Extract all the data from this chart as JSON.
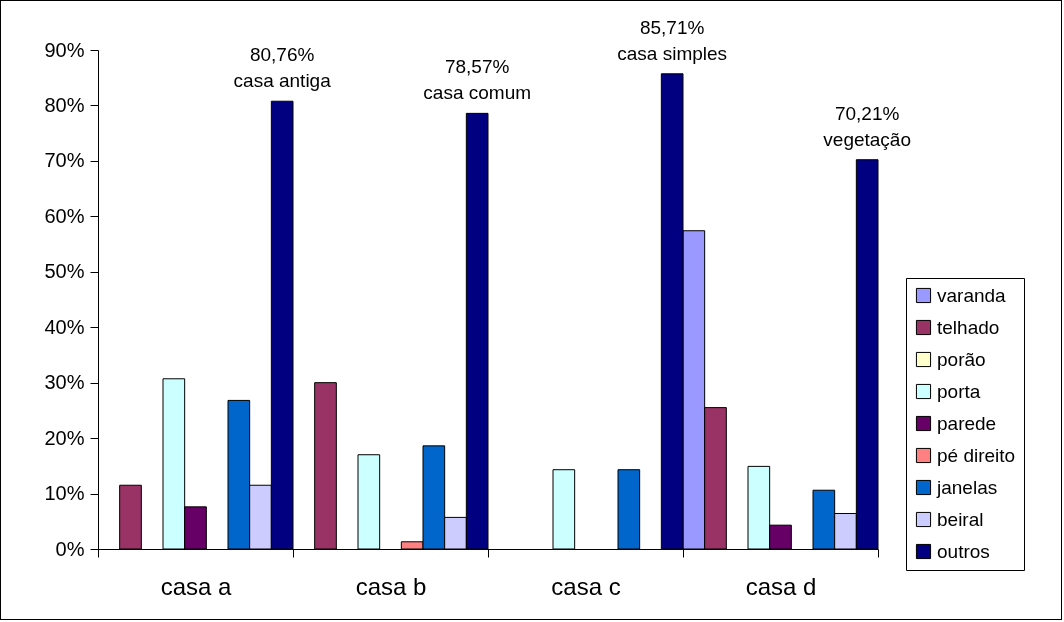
{
  "chart_data": {
    "type": "bar",
    "categories": [
      "casa a",
      "casa b",
      "casa c",
      "casa d"
    ],
    "series": [
      {
        "name": "varanda",
        "color": "#9999ff",
        "values": [
          0,
          0,
          0,
          57.4
        ]
      },
      {
        "name": "telhado",
        "color": "#993366",
        "values": [
          11.5,
          30,
          0,
          25.5
        ]
      },
      {
        "name": "porão",
        "color": "#ffffcc",
        "values": [
          0,
          0,
          0,
          0
        ]
      },
      {
        "name": "porta",
        "color": "#ccffff",
        "values": [
          30.7,
          17,
          14.3,
          14.9
        ]
      },
      {
        "name": "parede",
        "color": "#660066",
        "values": [
          7.6,
          0,
          0,
          4.3
        ]
      },
      {
        "name": "pé direito",
        "color": "#ff8080",
        "values": [
          0,
          1.3,
          0,
          0
        ]
      },
      {
        "name": "janelas",
        "color": "#0066cc",
        "values": [
          26.8,
          18.6,
          14.3,
          10.6
        ]
      },
      {
        "name": "beiral",
        "color": "#ccccff",
        "values": [
          11.5,
          5.7,
          0,
          6.4
        ]
      },
      {
        "name": "outros",
        "color": "#000080",
        "values": [
          80.76,
          78.57,
          85.71,
          70.21
        ],
        "value_labels": [
          "80,76%\ncasa antiga",
          "78,57%\ncasa comum",
          "85,71%\ncasa simples",
          "70,21%\nvegetação"
        ]
      }
    ],
    "ylim": [
      0,
      90
    ],
    "yticks": [
      {
        "value": 0,
        "label": "0%"
      },
      {
        "value": 10,
        "label": "10%"
      },
      {
        "value": 20,
        "label": "20%"
      },
      {
        "value": 30,
        "label": "30%"
      },
      {
        "value": 40,
        "label": "40%"
      },
      {
        "value": 50,
        "label": "50%"
      },
      {
        "value": 60,
        "label": "60%"
      },
      {
        "value": 70,
        "label": "70%"
      },
      {
        "value": 80,
        "label": "80%"
      },
      {
        "value": 90,
        "label": "90%"
      }
    ],
    "grid": false,
    "legend": "right"
  }
}
